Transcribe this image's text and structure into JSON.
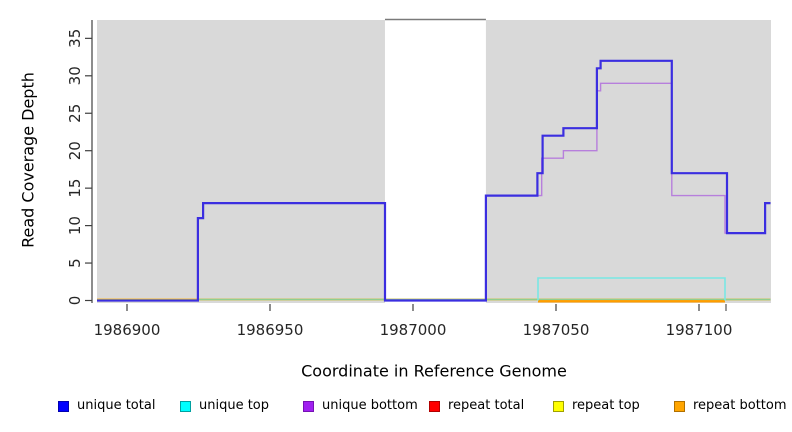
{
  "chart_data": {
    "type": "line",
    "subtype": "step-coverage",
    "title": "",
    "xlabel": "Coordinate in Reference Genome",
    "ylabel": "Read Coverage Depth",
    "x_ticks": [
      1986900,
      1986950,
      1987000,
      1987050,
      1987100
    ],
    "y_ticks": [
      0,
      5,
      10,
      15,
      20,
      25,
      30,
      35
    ],
    "xlim": [
      1986889.5,
      1987125
    ],
    "ylim": [
      0,
      37.4
    ],
    "grid": "off",
    "panel_background": "#d9d9d9",
    "highlight_band": {
      "x1": 1986990.2,
      "x2": 1987025.5,
      "fill": "#ffffff",
      "border_top": "#7a7a7a"
    },
    "series": [
      {
        "name": "repeat total",
        "color": "#ff0000",
        "width": 1.4,
        "dy": -1,
        "points": [
          [
            1986889.5,
            0
          ],
          [
            1987125,
            0
          ]
        ]
      },
      {
        "name": "repeat top",
        "color": "#ffff00",
        "width": 1.4,
        "dy": -1,
        "points": [
          [
            1986889.5,
            0
          ],
          [
            1987125,
            0
          ]
        ]
      },
      {
        "name": "zero baseline blend",
        "color": "#8fce8f",
        "width": 1.4,
        "dy": -1,
        "points": [
          [
            1986924.8,
            0
          ],
          [
            1987125,
            0
          ]
        ]
      },
      {
        "name": "repeat bottom",
        "color": "#ff9d00",
        "width": 2.4,
        "dy": 0.8,
        "points": [
          [
            1987043.7,
            0
          ],
          [
            1987109.1,
            0
          ]
        ]
      },
      {
        "name": "unique top",
        "color": "#79e7e4",
        "width": 1.6,
        "dy": 0,
        "points": [
          [
            1987043.7,
            0
          ],
          [
            1987043.7,
            3
          ],
          [
            1987109.1,
            3
          ],
          [
            1987109.1,
            0
          ]
        ]
      },
      {
        "name": "unique bottom",
        "color": "#b77fdc",
        "width": 1.4,
        "dy": 0,
        "points": [
          [
            1986889.5,
            0
          ],
          [
            1986924.8,
            0
          ],
          [
            1986924.8,
            11
          ],
          [
            1986926.6,
            11
          ],
          [
            1986926.6,
            13
          ],
          [
            1986990.2,
            13
          ],
          [
            1986990.2,
            0
          ],
          [
            1987025.5,
            0
          ],
          [
            1987025.5,
            14
          ],
          [
            1987045,
            14
          ],
          [
            1987045,
            19
          ],
          [
            1987052.6,
            19
          ],
          [
            1987052.6,
            20
          ],
          [
            1987064.3,
            20
          ],
          [
            1987064.3,
            28
          ],
          [
            1987065.6,
            28
          ],
          [
            1987065.6,
            29
          ],
          [
            1987090.5,
            29
          ],
          [
            1987090.5,
            14
          ],
          [
            1987109.1,
            14
          ],
          [
            1987109.1,
            9
          ],
          [
            1987123.1,
            9
          ],
          [
            1987123.1,
            13
          ],
          [
            1987125,
            13
          ]
        ]
      },
      {
        "name": "unique total",
        "color": "#3b2ee0",
        "width": 2.2,
        "dy": 0,
        "points": [
          [
            1986889.5,
            0
          ],
          [
            1986924.8,
            0
          ],
          [
            1986924.8,
            11
          ],
          [
            1986926.6,
            11
          ],
          [
            1986926.6,
            13
          ],
          [
            1986990.2,
            13
          ],
          [
            1986990.2,
            0
          ],
          [
            1987025.5,
            0
          ],
          [
            1987025.5,
            14
          ],
          [
            1987043.5,
            14
          ],
          [
            1987043.5,
            17
          ],
          [
            1987045.3,
            17
          ],
          [
            1987045.3,
            22
          ],
          [
            1987052.6,
            22
          ],
          [
            1987052.6,
            23
          ],
          [
            1987064.3,
            23
          ],
          [
            1987064.3,
            31
          ],
          [
            1987065.6,
            31
          ],
          [
            1987065.6,
            32
          ],
          [
            1987090.5,
            32
          ],
          [
            1987090.5,
            17
          ],
          [
            1987109.8,
            17
          ],
          [
            1987109.8,
            9
          ],
          [
            1987123.1,
            9
          ],
          [
            1987123.1,
            13
          ],
          [
            1987125,
            13
          ]
        ]
      }
    ],
    "axis_color": "#404040",
    "tick_label_color": "#262626"
  },
  "legend": {
    "position": "bottom",
    "items": [
      {
        "label": "unique total",
        "fill": "#0000ff",
        "border": "#0000b0"
      },
      {
        "label": "unique top",
        "fill": "#00ffff",
        "border": "#00a0a0"
      },
      {
        "label": "unique bottom",
        "fill": "#a020f0",
        "border": "#7612b4"
      },
      {
        "label": "repeat total",
        "fill": "#ff0000",
        "border": "#b00000"
      },
      {
        "label": "repeat top",
        "fill": "#ffff00",
        "border": "#a0a000"
      },
      {
        "label": "repeat bottom",
        "fill": "#ffa500",
        "border": "#b07000"
      }
    ]
  }
}
